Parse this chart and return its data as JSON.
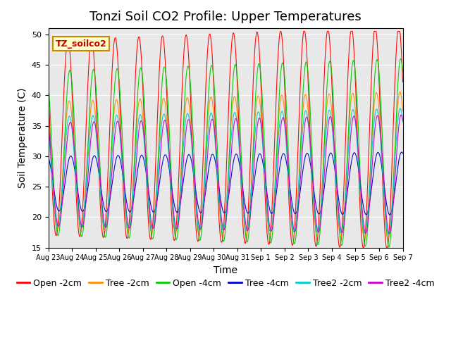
{
  "title": "Tonzi Soil CO2 Profile: Upper Temperatures",
  "ylabel": "Soil Temperature (C)",
  "xlabel": "Time",
  "ylim": [
    15,
    51
  ],
  "yticks": [
    15,
    20,
    25,
    30,
    35,
    40,
    45,
    50
  ],
  "n_days": 15,
  "points_per_day": 48,
  "series": [
    {
      "label": "Open -2cm",
      "color": "#ff0000",
      "amp": 16.0,
      "mean": 33.0,
      "phase": 0.0,
      "amp_scale": 1.0
    },
    {
      "label": "Tree -2cm",
      "color": "#ff8c00",
      "amp": 10.5,
      "mean": 28.5,
      "phase": 0.05,
      "amp_scale": 0.85
    },
    {
      "label": "Open -4cm",
      "color": "#00cc00",
      "amp": 13.5,
      "mean": 30.5,
      "phase": 0.08,
      "amp_scale": 0.9
    },
    {
      "label": "Tree -4cm",
      "color": "#0000cc",
      "amp": 4.5,
      "mean": 25.5,
      "phase": 0.12,
      "amp_scale": 0.7
    },
    {
      "label": "Tree2 -2cm",
      "color": "#00cccc",
      "amp": 9.0,
      "mean": 27.5,
      "phase": 0.06,
      "amp_scale": 0.8
    },
    {
      "label": "Tree2 -4cm",
      "color": "#cc00cc",
      "amp": 8.5,
      "mean": 27.0,
      "phase": 0.1,
      "amp_scale": 0.78
    }
  ],
  "xtick_labels": [
    "Aug 23",
    "Aug 24",
    "Aug 25",
    "Aug 26",
    "Aug 27",
    "Aug 28",
    "Aug 29",
    "Aug 30",
    "Aug 31",
    "Sep 1",
    "Sep 2",
    "Sep 3",
    "Sep 4",
    "Sep 5",
    "Sep 6",
    "Sep 7"
  ],
  "legend_label": "TZ_soilco2",
  "background_color": "#ffffff",
  "plot_bg_color": "#e8e8e8",
  "grid_color": "#ffffff",
  "title_fontsize": 13,
  "axis_fontsize": 10,
  "tick_fontsize": 7,
  "legend_fontsize": 9
}
